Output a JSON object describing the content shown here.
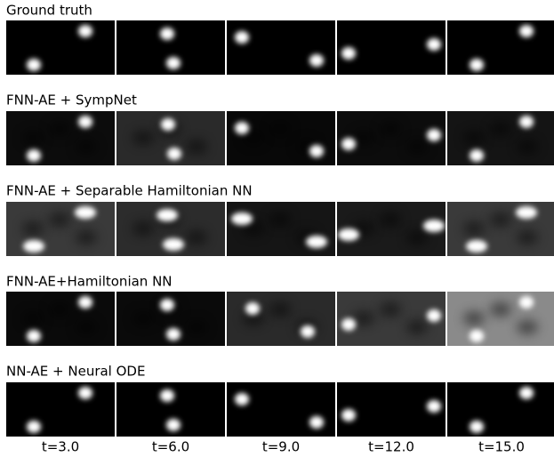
{
  "rows": [
    {
      "title": "Ground truth"
    },
    {
      "title": "FNN-AE + SympNet"
    },
    {
      "title": "FNN-AE + Separable Hamiltonian NN"
    },
    {
      "title": "FNN-AE+Hamiltonian NN"
    },
    {
      "title": "NN-AE + Neural ODE"
    }
  ],
  "columns": [
    "t=3.0",
    "t=6.0",
    "t=9.0",
    "t=12.0",
    "t=15.0"
  ]
}
